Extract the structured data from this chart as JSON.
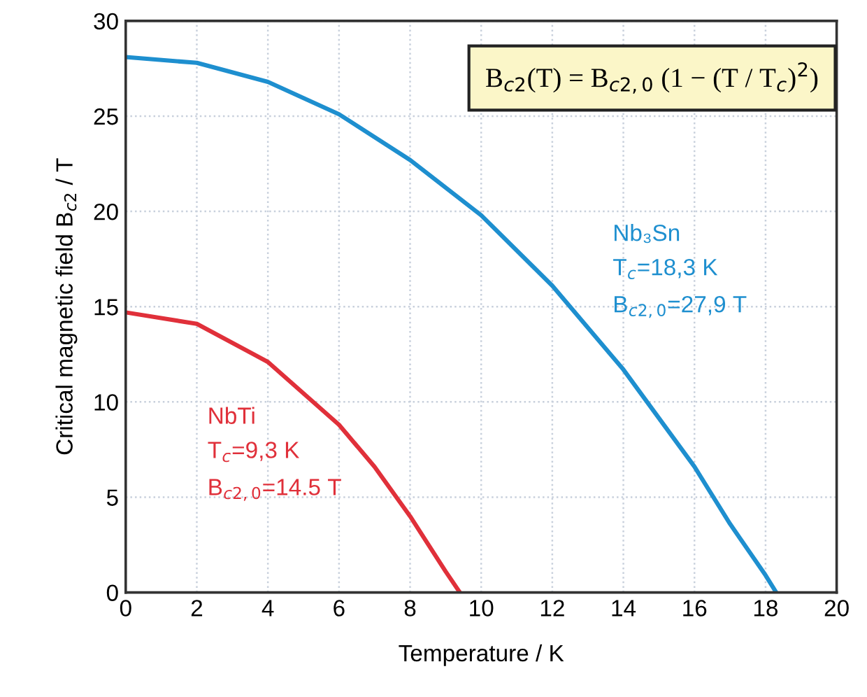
{
  "chart_data": {
    "type": "line",
    "xlabel": "Temperature / K",
    "ylabel": "Critical magnetic field B$_{c2}$ / T",
    "xlim": [
      0,
      20
    ],
    "xticks": [
      0,
      2,
      4,
      6,
      8,
      10,
      12,
      14,
      16,
      18,
      20
    ],
    "ylim": [
      0,
      30
    ],
    "yticks": [
      0,
      5,
      10,
      15,
      20,
      25,
      30
    ],
    "grid": true,
    "line_style": "solid",
    "series": [
      {
        "name": "Nb₃Sn",
        "color": "#1e8fcf",
        "x": [
          0,
          2,
          4,
          6,
          8,
          10,
          12,
          14,
          16,
          17,
          18,
          18.3
        ],
        "values": [
          28.1,
          27.8,
          26.8,
          25.1,
          22.7,
          19.8,
          16.1,
          11.7,
          6.6,
          3.6,
          0.9,
          0
        ]
      },
      {
        "name": "NbTi",
        "color": "#e0303a",
        "x": [
          0,
          2,
          4,
          6,
          7,
          8,
          9,
          9.4
        ],
        "values": [
          14.7,
          14.1,
          12.1,
          8.8,
          6.6,
          4.0,
          1.1,
          0
        ]
      }
    ],
    "annotations": [
      "B$_{c2}$(T) = B$_{c2,0}$ (1 − (T / T$_{c}$)$^{2}$)",
      "T$_{c}$=18,3 K",
      "B$_{c2,0}$=27,9 T",
      "T$_{c}$=9,3 K",
      "B$_{c2,0}$=14.5 T"
    ]
  }
}
